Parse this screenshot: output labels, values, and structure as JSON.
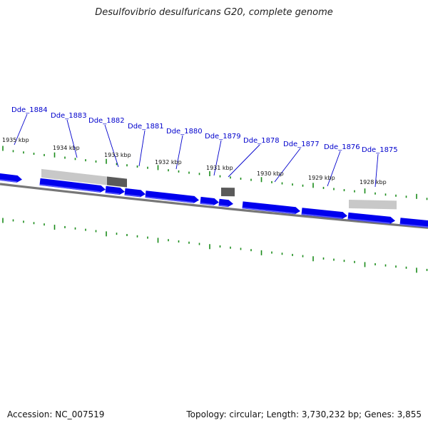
{
  "title": "Desulfovibrio desulfuricans G20, complete genome",
  "footer": {
    "accession": "Accession: NC_007519",
    "topology": "Topology: circular; Length: 3,730,232 bp; Genes: 3,855"
  },
  "colors": {
    "gene": "#0000ee",
    "gene_light": "#5a5aff",
    "backbone": "#777777",
    "tick": "#1a8c1a",
    "label": "#0000cc",
    "feature_light": "#c8c8c8",
    "feature_dark": "#5a5a5a"
  },
  "genes": [
    "Dde_1884",
    "Dde_1883",
    "Dde_1882",
    "Dde_1881",
    "Dde_1880",
    "Dde_1879",
    "Dde_1878",
    "Dde_1877",
    "Dde_1876",
    "Dde_1875"
  ],
  "kbp_labels": [
    "1935 kbp",
    "1934 kbp",
    "1933 kbp",
    "1932 kbp",
    "1931 kbp",
    "1930 kbp",
    "1929 kbp",
    "1928 kbp"
  ]
}
